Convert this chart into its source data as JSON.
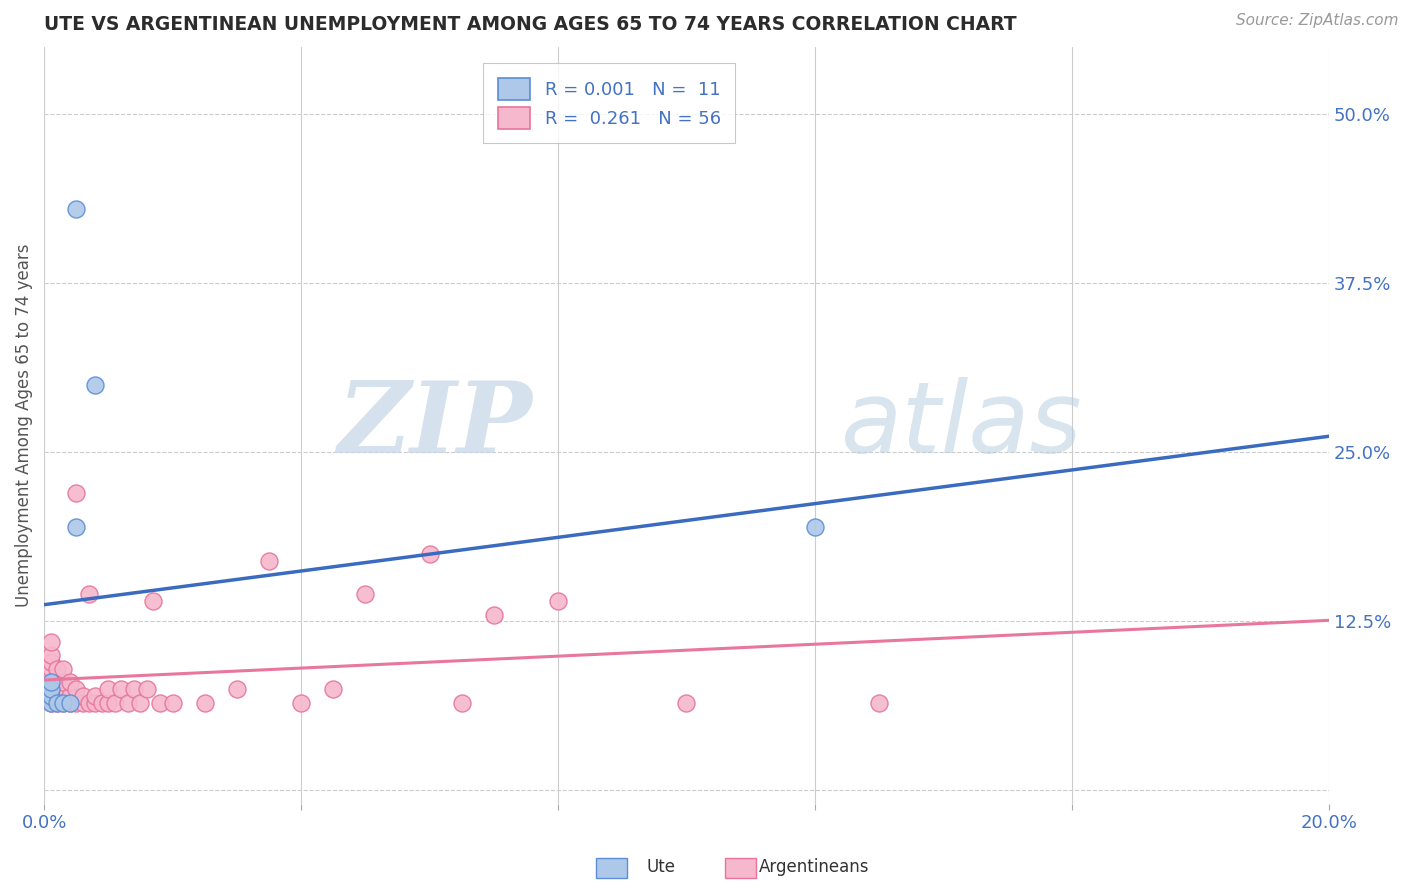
{
  "title": "UTE VS ARGENTINEAN UNEMPLOYMENT AMONG AGES 65 TO 74 YEARS CORRELATION CHART",
  "source": "Source: ZipAtlas.com",
  "ylabel": "Unemployment Among Ages 65 to 74 years",
  "xlim": [
    0.0,
    0.2
  ],
  "ylim": [
    -0.01,
    0.55
  ],
  "xticks": [
    0.0,
    0.04,
    0.08,
    0.12,
    0.16,
    0.2
  ],
  "yticks_right": [
    0.5,
    0.375,
    0.25,
    0.125,
    0.0
  ],
  "ytick_labels_right": [
    "50.0%",
    "37.5%",
    "25.0%",
    "12.5%",
    ""
  ],
  "legend_r_ute": "0.001",
  "legend_n_ute": "11",
  "legend_r_arg": "0.261",
  "legend_n_arg": "56",
  "ute_color": "#adc8e8",
  "arg_color": "#f5b8cc",
  "ute_edge_color": "#5b8ed6",
  "arg_edge_color": "#e8749a",
  "ute_line_color": "#3a6bbf",
  "arg_line_color": "#e8769e",
  "background_color": "#ffffff",
  "watermark_zip": "ZIP",
  "watermark_atlas": "atlas",
  "ute_x": [
    0.001,
    0.001,
    0.001,
    0.001,
    0.002,
    0.003,
    0.004,
    0.005,
    0.008,
    0.005,
    0.12
  ],
  "ute_y": [
    0.065,
    0.07,
    0.075,
    0.08,
    0.065,
    0.065,
    0.065,
    0.43,
    0.3,
    0.195,
    0.195
  ],
  "arg_x": [
    0.001,
    0.001,
    0.001,
    0.001,
    0.001,
    0.001,
    0.001,
    0.001,
    0.001,
    0.001,
    0.002,
    0.002,
    0.002,
    0.002,
    0.002,
    0.002,
    0.003,
    0.003,
    0.003,
    0.003,
    0.004,
    0.004,
    0.004,
    0.005,
    0.005,
    0.005,
    0.006,
    0.006,
    0.007,
    0.007,
    0.008,
    0.008,
    0.009,
    0.01,
    0.01,
    0.011,
    0.012,
    0.013,
    0.014,
    0.015,
    0.016,
    0.017,
    0.018,
    0.02,
    0.025,
    0.03,
    0.035,
    0.04,
    0.045,
    0.05,
    0.06,
    0.065,
    0.07,
    0.08,
    0.1,
    0.13
  ],
  "arg_y": [
    0.065,
    0.068,
    0.07,
    0.075,
    0.08,
    0.085,
    0.09,
    0.095,
    0.1,
    0.11,
    0.065,
    0.07,
    0.075,
    0.08,
    0.085,
    0.09,
    0.065,
    0.07,
    0.08,
    0.09,
    0.065,
    0.07,
    0.08,
    0.065,
    0.075,
    0.22,
    0.065,
    0.07,
    0.065,
    0.145,
    0.065,
    0.07,
    0.065,
    0.065,
    0.075,
    0.065,
    0.075,
    0.065,
    0.075,
    0.065,
    0.075,
    0.14,
    0.065,
    0.065,
    0.065,
    0.075,
    0.17,
    0.065,
    0.075,
    0.145,
    0.175,
    0.065,
    0.13,
    0.14,
    0.065,
    0.065
  ]
}
